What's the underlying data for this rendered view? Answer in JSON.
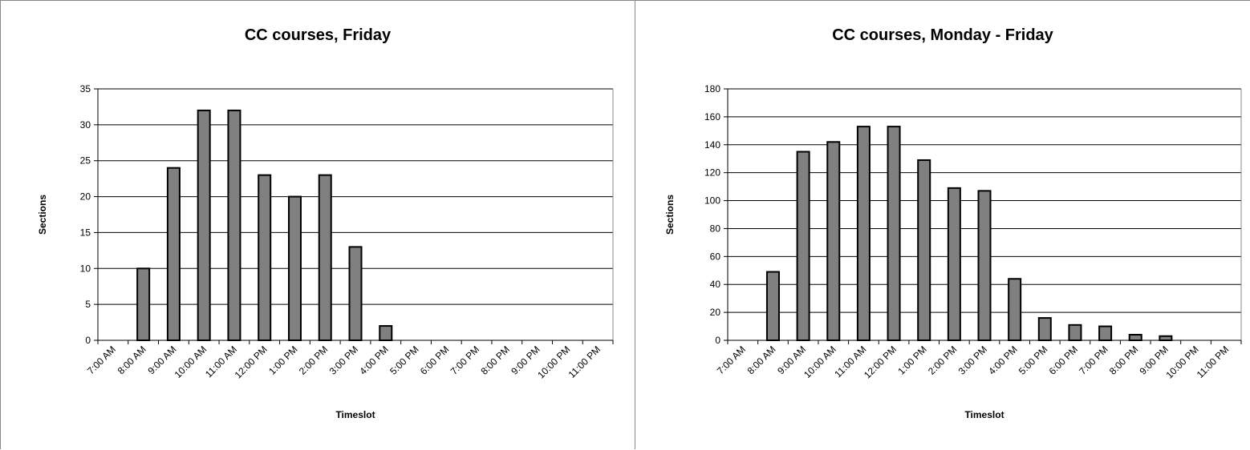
{
  "chart_data": [
    {
      "type": "bar",
      "title": "CC courses, Friday",
      "xlabel": "Timeslot",
      "ylabel": "Sections",
      "ylim": [
        0,
        35
      ],
      "ytick_step": 5,
      "grid": true,
      "bar_color": "#808080",
      "categories": [
        "7:00 AM",
        "8:00 AM",
        "9:00 AM",
        "10:00 AM",
        "11:00 AM",
        "12:00 PM",
        "1:00 PM",
        "2:00 PM",
        "3:00 PM",
        "4:00 PM",
        "5:00 PM",
        "6:00 PM",
        "7:00 PM",
        "8:00 PM",
        "9:00 PM",
        "10:00 PM",
        "11:00 PM"
      ],
      "values": [
        0,
        10,
        24,
        32,
        32,
        23,
        20,
        23,
        13,
        2,
        0,
        0,
        0,
        0,
        0,
        0,
        0
      ]
    },
    {
      "type": "bar",
      "title": "CC courses, Monday - Friday",
      "xlabel": "Timeslot",
      "ylabel": "Sections",
      "ylim": [
        0,
        180
      ],
      "ytick_step": 20,
      "grid": true,
      "bar_color": "#808080",
      "categories": [
        "7:00 AM",
        "8:00 AM",
        "9:00 AM",
        "10:00 AM",
        "11:00 AM",
        "12:00 PM",
        "1:00 PM",
        "2:00 PM",
        "3:00 PM",
        "4:00 PM",
        "5:00 PM",
        "6:00 PM",
        "7:00 PM",
        "8:00 PM",
        "9:00 PM",
        "10:00 PM",
        "11:00 PM"
      ],
      "values": [
        0,
        49,
        135,
        142,
        153,
        153,
        129,
        109,
        107,
        44,
        16,
        11,
        10,
        4,
        3,
        0,
        0
      ]
    }
  ]
}
